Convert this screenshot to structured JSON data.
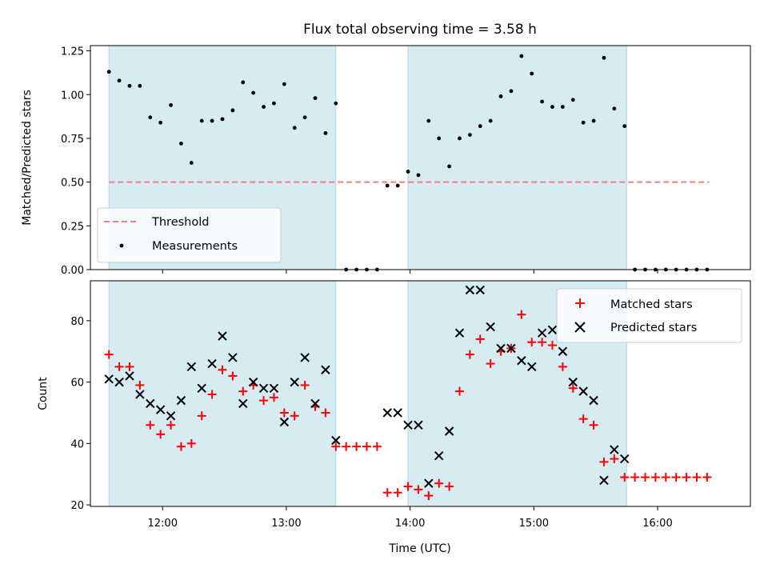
{
  "chart_data": [
    {
      "type": "scatter",
      "title": "Flux total observing time = 3.58 h",
      "xlabel": "",
      "ylabel": "Matched/Predicted stars",
      "xlim": [
        "11:25",
        "16:45"
      ],
      "ylim": [
        0,
        1.28
      ],
      "yticks": [
        0,
        0.25,
        0.5,
        0.75,
        1.0,
        1.25
      ],
      "ytick_labels": [
        "0.00",
        "0.25",
        "0.50",
        "0.75",
        "1.00",
        "1.25"
      ],
      "grid": false,
      "legend": {
        "position": "bottom-left",
        "entries": [
          "Threshold",
          "Measurements"
        ]
      },
      "observing_windows": [
        [
          "11:34",
          "13:24"
        ],
        [
          "13:59",
          "15:45"
        ]
      ],
      "series": [
        {
          "name": "Threshold",
          "style": "dashed-line",
          "color": "#f08080",
          "x": [
            "11:34",
            "16:25"
          ],
          "y": [
            0.5,
            0.5
          ]
        },
        {
          "name": "Measurements",
          "style": "dot",
          "color": "#000000",
          "x": [
            "11:34",
            "11:39",
            "11:44",
            "11:49",
            "11:54",
            "11:59",
            "12:04",
            "12:09",
            "12:14",
            "12:19",
            "12:24",
            "12:29",
            "12:34",
            "12:39",
            "12:44",
            "12:49",
            "12:54",
            "12:59",
            "13:04",
            "13:09",
            "13:14",
            "13:19",
            "13:24",
            "13:29",
            "13:34",
            "13:39",
            "13:44",
            "13:49",
            "13:54",
            "13:59",
            "14:04",
            "14:09",
            "14:14",
            "14:19",
            "14:24",
            "14:29",
            "14:34",
            "14:39",
            "14:44",
            "14:49",
            "14:54",
            "14:59",
            "15:04",
            "15:09",
            "15:14",
            "15:19",
            "15:24",
            "15:29",
            "15:34",
            "15:39",
            "15:44",
            "15:49",
            "15:54",
            "15:59",
            "16:04",
            "16:09",
            "16:14",
            "16:19",
            "16:24"
          ],
          "y": [
            1.13,
            1.08,
            1.05,
            1.05,
            0.87,
            0.84,
            0.94,
            0.72,
            0.61,
            0.85,
            0.85,
            0.86,
            0.91,
            1.07,
            1.01,
            0.93,
            0.95,
            1.06,
            0.81,
            0.87,
            0.98,
            0.78,
            0.95,
            0.0,
            0.0,
            0.0,
            0.0,
            0.48,
            0.48,
            0.56,
            0.54,
            0.85,
            0.75,
            0.59,
            0.75,
            0.77,
            0.82,
            0.85,
            0.99,
            1.02,
            1.22,
            1.12,
            0.96,
            0.93,
            0.93,
            0.97,
            0.84,
            0.85,
            1.21,
            0.92,
            0.82,
            0.0,
            0.0,
            0.0,
            0.0,
            0.0,
            0.0,
            0.0,
            0.0
          ]
        }
      ]
    },
    {
      "type": "scatter",
      "title": "",
      "xlabel": "Time (UTC)",
      "ylabel": "Count",
      "xlim": [
        "11:25",
        "16:45"
      ],
      "ylim": [
        19.5,
        93
      ],
      "xticks": [
        "12:00",
        "13:00",
        "14:00",
        "15:00",
        "16:00"
      ],
      "yticks": [
        20,
        40,
        60,
        80
      ],
      "grid": false,
      "legend": {
        "position": "top-right",
        "entries": [
          "Matched stars",
          "Predicted stars"
        ]
      },
      "observing_windows": [
        [
          "11:34",
          "13:24"
        ],
        [
          "13:59",
          "15:45"
        ]
      ],
      "series": [
        {
          "name": "Matched stars",
          "marker": "+",
          "color": "#ff0000",
          "x": [
            "11:34",
            "11:39",
            "11:44",
            "11:49",
            "11:54",
            "11:59",
            "12:04",
            "12:09",
            "12:14",
            "12:19",
            "12:24",
            "12:29",
            "12:34",
            "12:39",
            "12:44",
            "12:49",
            "12:54",
            "12:59",
            "13:04",
            "13:09",
            "13:14",
            "13:19",
            "13:24",
            "13:29",
            "13:34",
            "13:39",
            "13:44",
            "13:49",
            "13:54",
            "13:59",
            "14:04",
            "14:09",
            "14:14",
            "14:19",
            "14:24",
            "14:29",
            "14:34",
            "14:39",
            "14:44",
            "14:49",
            "14:54",
            "14:59",
            "15:04",
            "15:09",
            "15:14",
            "15:19",
            "15:24",
            "15:29",
            "15:34",
            "15:39",
            "15:44",
            "15:49",
            "15:54",
            "15:59",
            "16:04",
            "16:09",
            "16:14",
            "16:19",
            "16:24"
          ],
          "y": [
            69,
            65,
            65,
            59,
            46,
            43,
            46,
            39,
            40,
            49,
            56,
            64,
            62,
            57,
            59,
            54,
            55,
            50,
            49,
            59,
            52,
            50,
            39,
            39,
            39,
            39,
            39,
            24,
            24,
            26,
            25,
            23,
            27,
            26,
            57,
            69,
            74,
            66,
            70,
            71,
            82,
            73,
            73,
            72,
            65,
            58,
            48,
            46,
            34,
            35,
            29,
            29,
            29,
            29,
            29,
            29,
            29,
            29,
            29
          ]
        },
        {
          "name": "Predicted stars",
          "marker": "x",
          "color": "#000000",
          "x": [
            "11:34",
            "11:39",
            "11:44",
            "11:49",
            "11:54",
            "11:59",
            "12:04",
            "12:09",
            "12:14",
            "12:19",
            "12:24",
            "12:29",
            "12:34",
            "12:39",
            "12:44",
            "12:49",
            "12:54",
            "12:59",
            "13:04",
            "13:09",
            "13:14",
            "13:19",
            "13:24",
            "13:49",
            "13:54",
            "13:59",
            "14:04",
            "14:09",
            "14:14",
            "14:19",
            "14:24",
            "14:29",
            "14:34",
            "14:39",
            "14:44",
            "14:49",
            "14:54",
            "14:59",
            "15:04",
            "15:09",
            "15:14",
            "15:19",
            "15:24",
            "15:29",
            "15:34",
            "15:39",
            "15:44"
          ],
          "y": [
            61,
            60,
            62,
            56,
            53,
            51,
            49,
            54,
            65,
            58,
            66,
            75,
            68,
            53,
            60,
            58,
            58,
            47,
            60,
            68,
            53,
            64,
            41,
            50,
            50,
            46,
            46,
            27,
            36,
            44,
            76,
            90,
            90,
            78,
            71,
            71,
            67,
            65,
            76,
            77,
            70,
            60,
            57,
            54,
            28,
            38,
            35
          ]
        }
      ]
    }
  ]
}
